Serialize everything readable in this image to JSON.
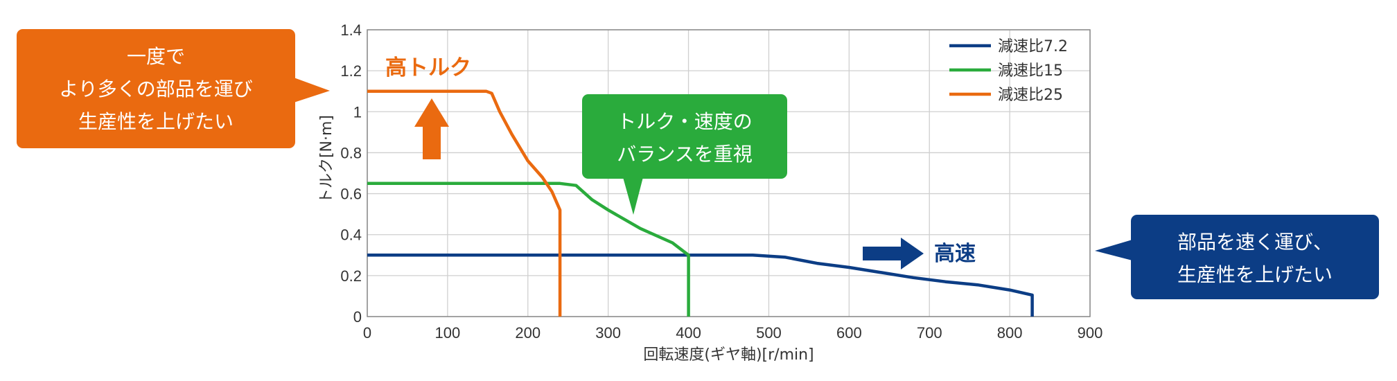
{
  "chart_data": {
    "type": "line",
    "xlabel": "回転速度(ギヤ軸)[r/min]",
    "ylabel": "トルク[N·m]",
    "xlim": [
      0,
      900
    ],
    "ylim": [
      0,
      1.4
    ],
    "x_ticks": [
      "0",
      "100",
      "200",
      "300",
      "400",
      "500",
      "600",
      "700",
      "800",
      "900"
    ],
    "y_ticks": [
      "0",
      "0.2",
      "0.4",
      "0.6",
      "0.8",
      "1",
      "1.2",
      "1.4"
    ],
    "grid": true,
    "legend_position": "top-right",
    "series": [
      {
        "name": "減速比7.2",
        "color": "#0c3d85",
        "points": [
          [
            0,
            0.3
          ],
          [
            480,
            0.3
          ],
          [
            520,
            0.29
          ],
          [
            560,
            0.26
          ],
          [
            600,
            0.24
          ],
          [
            640,
            0.215
          ],
          [
            680,
            0.19
          ],
          [
            720,
            0.17
          ],
          [
            760,
            0.155
          ],
          [
            800,
            0.13
          ],
          [
            828,
            0.105
          ],
          [
            828,
            0
          ]
        ]
      },
      {
        "name": "減速比15",
        "color": "#2aab3c",
        "points": [
          [
            0,
            0.65
          ],
          [
            240,
            0.65
          ],
          [
            260,
            0.64
          ],
          [
            280,
            0.57
          ],
          [
            300,
            0.52
          ],
          [
            340,
            0.43
          ],
          [
            380,
            0.36
          ],
          [
            400,
            0.3
          ],
          [
            400,
            0
          ]
        ]
      },
      {
        "name": "減速比25",
        "color": "#ea6a10",
        "points": [
          [
            0,
            1.1
          ],
          [
            148,
            1.1
          ],
          [
            155,
            1.09
          ],
          [
            165,
            1.0
          ],
          [
            180,
            0.89
          ],
          [
            200,
            0.76
          ],
          [
            218,
            0.68
          ],
          [
            230,
            0.61
          ],
          [
            240,
            0.52
          ],
          [
            240,
            0
          ]
        ]
      }
    ]
  },
  "annotations": {
    "high_torque": "高トルク",
    "high_speed": "高速"
  },
  "callouts": {
    "left": {
      "lines": [
        "一度で",
        "より多くの部品を運び",
        "生産性を上げたい"
      ],
      "color": "#ea6a10"
    },
    "middle": {
      "lines": [
        "トルク・速度の",
        "バランスを重視"
      ],
      "color": "#2aab3c"
    },
    "right": {
      "lines": [
        "部品を速く運び、",
        "生産性を上げたい"
      ],
      "color": "#0c3d85"
    }
  }
}
